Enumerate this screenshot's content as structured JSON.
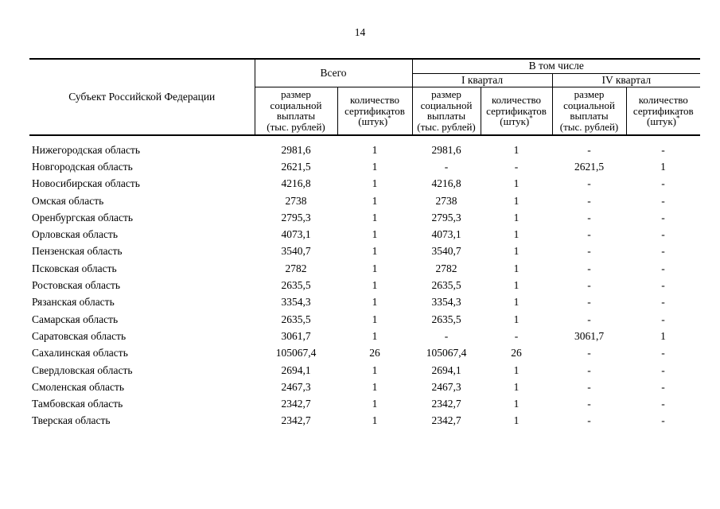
{
  "page": {
    "number": "14"
  },
  "table": {
    "header": {
      "subject": "Субъект Российской Федерации",
      "total": "Всего",
      "including": "В том числе",
      "q1": "I квартал",
      "q4": "IV квартал",
      "amount_label_lines": [
        "размер",
        "социальной",
        "выплаты",
        "(тыс. рублей)"
      ],
      "count_label_lines": [
        "количество",
        "сертификатов",
        "(штук)"
      ],
      "footnote_mark": "*"
    },
    "rows": [
      {
        "region": "Нижегородская область",
        "total_amount": "2981,6",
        "total_count": "1",
        "q1_amount": "2981,6",
        "q1_count": "1",
        "q4_amount": "-",
        "q4_count": "-"
      },
      {
        "region": "Новгородская область",
        "total_amount": "2621,5",
        "total_count": "1",
        "q1_amount": "-",
        "q1_count": "-",
        "q4_amount": "2621,5",
        "q4_count": "1"
      },
      {
        "region": "Новосибирская область",
        "total_amount": "4216,8",
        "total_count": "1",
        "q1_amount": "4216,8",
        "q1_count": "1",
        "q4_amount": "-",
        "q4_count": "-"
      },
      {
        "region": "Омская область",
        "total_amount": "2738",
        "total_count": "1",
        "q1_amount": "2738",
        "q1_count": "1",
        "q4_amount": "-",
        "q4_count": "-"
      },
      {
        "region": "Оренбургская область",
        "total_amount": "2795,3",
        "total_count": "1",
        "q1_amount": "2795,3",
        "q1_count": "1",
        "q4_amount": "-",
        "q4_count": "-"
      },
      {
        "region": "Орловская область",
        "total_amount": "4073,1",
        "total_count": "1",
        "q1_amount": "4073,1",
        "q1_count": "1",
        "q4_amount": "-",
        "q4_count": "-"
      },
      {
        "region": "Пензенская область",
        "total_amount": "3540,7",
        "total_count": "1",
        "q1_amount": "3540,7",
        "q1_count": "1",
        "q4_amount": "-",
        "q4_count": "-"
      },
      {
        "region": "Псковская область",
        "total_amount": "2782",
        "total_count": "1",
        "q1_amount": "2782",
        "q1_count": "1",
        "q4_amount": "-",
        "q4_count": "-"
      },
      {
        "region": "Ростовская область",
        "total_amount": "2635,5",
        "total_count": "1",
        "q1_amount": "2635,5",
        "q1_count": "1",
        "q4_amount": "-",
        "q4_count": "-"
      },
      {
        "region": "Рязанская область",
        "total_amount": "3354,3",
        "total_count": "1",
        "q1_amount": "3354,3",
        "q1_count": "1",
        "q4_amount": "-",
        "q4_count": "-"
      },
      {
        "region": "Самарская область",
        "total_amount": "2635,5",
        "total_count": "1",
        "q1_amount": "2635,5",
        "q1_count": "1",
        "q4_amount": "-",
        "q4_count": "-"
      },
      {
        "region": "Саратовская область",
        "total_amount": "3061,7",
        "total_count": "1",
        "q1_amount": "-",
        "q1_count": "-",
        "q4_amount": "3061,7",
        "q4_count": "1"
      },
      {
        "region": "Сахалинская область",
        "total_amount": "105067,4",
        "total_count": "26",
        "q1_amount": "105067,4",
        "q1_count": "26",
        "q4_amount": "-",
        "q4_count": "-"
      },
      {
        "region": "Свердловская область",
        "total_amount": "2694,1",
        "total_count": "1",
        "q1_amount": "2694,1",
        "q1_count": "1",
        "q4_amount": "-",
        "q4_count": "-"
      },
      {
        "region": "Смоленская область",
        "total_amount": "2467,3",
        "total_count": "1",
        "q1_amount": "2467,3",
        "q1_count": "1",
        "q4_amount": "-",
        "q4_count": "-"
      },
      {
        "region": "Тамбовская область",
        "total_amount": "2342,7",
        "total_count": "1",
        "q1_amount": "2342,7",
        "q1_count": "1",
        "q4_amount": "-",
        "q4_count": "-"
      },
      {
        "region": "Тверская область",
        "total_amount": "2342,7",
        "total_count": "1",
        "q1_amount": "2342,7",
        "q1_count": "1",
        "q4_amount": "-",
        "q4_count": "-"
      }
    ]
  }
}
